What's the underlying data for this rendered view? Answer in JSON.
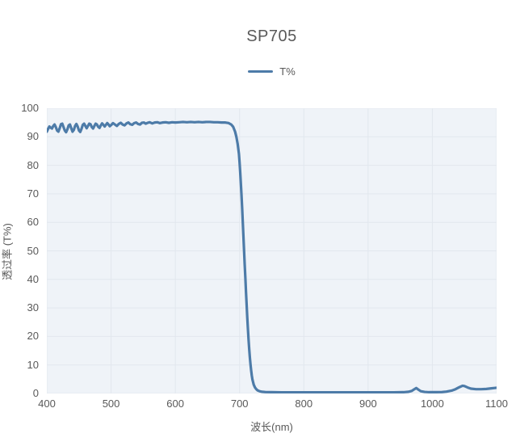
{
  "chart": {
    "title": "SP705",
    "legend": "T%",
    "xlabel": "波长(nm)",
    "ylabel": "透过率 (T%)"
  },
  "colors": {
    "line": "#4d7ba8",
    "plot_background": "#eff3f8",
    "gridline": "#e2e7ee",
    "text": "#595959"
  },
  "chart_data": {
    "type": "line",
    "title": "SP705",
    "xlabel": "波长(nm)",
    "ylabel": "透过率 (T%)",
    "xlim": [
      400,
      1100
    ],
    "ylim": [
      0,
      100
    ],
    "xticks": [
      400,
      500,
      600,
      700,
      800,
      900,
      1000,
      1100
    ],
    "yticks": [
      0,
      10,
      20,
      30,
      40,
      50,
      60,
      70,
      80,
      90,
      100
    ],
    "grid": true,
    "legend_position": "top-center",
    "series": [
      {
        "name": "T%",
        "x": [
          400,
          402,
          404,
          406,
          408,
          410,
          412,
          414,
          416,
          418,
          420,
          422,
          424,
          426,
          428,
          430,
          432,
          434,
          436,
          438,
          440,
          442,
          444,
          446,
          448,
          450,
          452,
          454,
          456,
          458,
          460,
          462,
          464,
          466,
          468,
          470,
          472,
          474,
          476,
          478,
          480,
          482,
          484,
          486,
          488,
          490,
          492,
          494,
          496,
          498,
          500,
          503,
          506,
          509,
          512,
          515,
          518,
          521,
          524,
          527,
          530,
          533,
          536,
          539,
          542,
          545,
          548,
          551,
          554,
          557,
          560,
          564,
          568,
          572,
          576,
          580,
          585,
          590,
          595,
          600,
          606,
          612,
          618,
          624,
          630,
          636,
          642,
          648,
          654,
          660,
          666,
          672,
          678,
          683,
          687,
          690,
          693,
          695,
          697,
          699,
          700,
          701,
          702,
          703,
          704,
          705,
          706,
          707,
          708,
          709,
          710,
          711,
          712,
          713,
          714,
          715,
          716,
          717,
          718,
          719,
          720,
          722,
          724,
          726,
          728,
          731,
          735,
          740,
          750,
          765,
          780,
          800,
          820,
          840,
          860,
          880,
          900,
          920,
          940,
          955,
          963,
          968,
          972,
          975,
          978,
          982,
          988,
          995,
          1005,
          1015,
          1022,
          1030,
          1036,
          1042,
          1047,
          1050,
          1055,
          1060,
          1068,
          1076,
          1084,
          1092,
          1100
        ],
        "y": [
          91.8,
          92.8,
          93.6,
          93.2,
          92.9,
          93.8,
          94.3,
          93.4,
          92.2,
          91.8,
          93.0,
          94.4,
          94.6,
          93.4,
          92.2,
          91.6,
          92.6,
          94.0,
          94.3,
          93.0,
          91.8,
          92.4,
          93.8,
          94.5,
          93.6,
          92.2,
          91.7,
          92.8,
          94.2,
          94.6,
          93.8,
          93.0,
          93.8,
          94.6,
          94.4,
          93.4,
          92.9,
          93.8,
          94.6,
          94.3,
          93.5,
          93.1,
          94.0,
          94.7,
          94.2,
          93.6,
          94.2,
          94.8,
          94.3,
          93.7,
          94.1,
          94.8,
          94.3,
          93.8,
          94.5,
          94.9,
          94.3,
          94.0,
          94.7,
          95.0,
          94.4,
          94.2,
          94.8,
          95.0,
          94.5,
          94.3,
          94.9,
          95.0,
          94.6,
          94.9,
          95.1,
          94.7,
          95.0,
          95.1,
          94.8,
          95.0,
          95.1,
          94.9,
          95.1,
          95.0,
          95.1,
          95.2,
          95.1,
          95.2,
          95.1,
          95.2,
          95.1,
          95.2,
          95.2,
          95.1,
          95.1,
          95.0,
          95.0,
          94.8,
          94.3,
          93.5,
          91.8,
          90.0,
          87.5,
          84.0,
          81.0,
          77.5,
          73.5,
          69.5,
          65.0,
          60.0,
          55.0,
          50.0,
          45.0,
          40.5,
          35.5,
          31.0,
          26.5,
          22.5,
          18.8,
          15.5,
          12.6,
          10.2,
          8.1,
          6.3,
          4.9,
          3.1,
          2.1,
          1.5,
          1.1,
          0.8,
          0.6,
          0.5,
          0.45,
          0.4,
          0.4,
          0.4,
          0.4,
          0.4,
          0.4,
          0.4,
          0.4,
          0.4,
          0.4,
          0.45,
          0.6,
          0.9,
          1.5,
          1.9,
          1.4,
          0.8,
          0.55,
          0.45,
          0.45,
          0.5,
          0.65,
          1.0,
          1.5,
          2.2,
          2.7,
          2.6,
          2.1,
          1.7,
          1.5,
          1.5,
          1.6,
          1.8,
          2.0
        ]
      }
    ]
  }
}
